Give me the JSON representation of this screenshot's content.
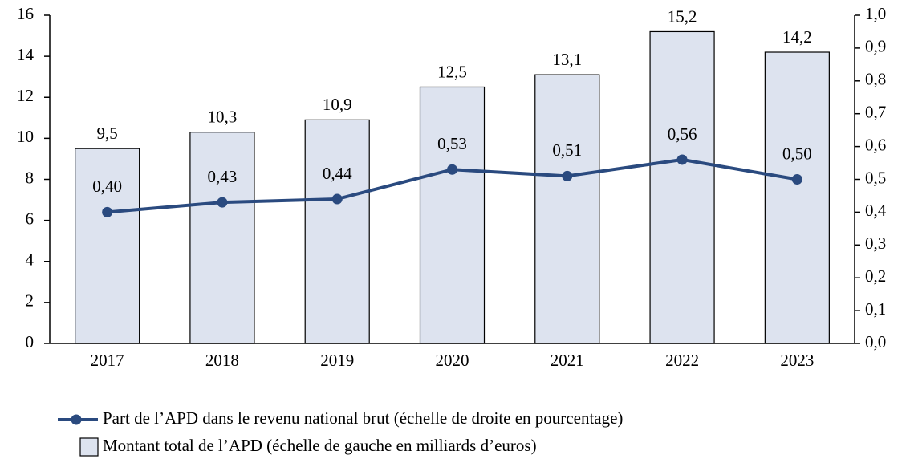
{
  "chart_data": {
    "type": "combo",
    "categories": [
      "2017",
      "2018",
      "2019",
      "2020",
      "2021",
      "2022",
      "2023"
    ],
    "series": [
      {
        "name": "Montant total de l’APD (échelle de gauche en milliards d’euros)",
        "type": "bar",
        "axis": "y",
        "color": "#dde3ef",
        "values": [
          9.5,
          10.3,
          10.9,
          12.5,
          13.1,
          15.2,
          14.2
        ],
        "value_labels": [
          "9,5",
          "10,3",
          "10,9",
          "12,5",
          "13,1",
          "15,2",
          "14,2"
        ]
      },
      {
        "name": "Part de l’APD dans le revenu national brut (échelle de droite en pourcentage)",
        "type": "line",
        "axis": "y2",
        "color": "#2a4a7f",
        "values": [
          0.4,
          0.43,
          0.44,
          0.53,
          0.51,
          0.56,
          0.5
        ],
        "value_labels": [
          "0,40",
          "0,43",
          "0,44",
          "0,53",
          "0,51",
          "0,56",
          "0,50"
        ]
      }
    ],
    "ylim": [
      0,
      16
    ],
    "yticks": [
      0,
      2,
      4,
      6,
      8,
      10,
      12,
      14,
      16
    ],
    "y2lim": [
      0,
      1.0
    ],
    "y2ticks": [
      {
        "value": 0,
        "label": "0,0"
      },
      {
        "value": 0.1,
        "label": "0,1"
      },
      {
        "value": 0.2,
        "label": "0,2"
      },
      {
        "value": 0.3,
        "label": "0,3"
      },
      {
        "value": 0.4,
        "label": "0,4"
      },
      {
        "value": 0.5,
        "label": "0,5"
      },
      {
        "value": 0.6,
        "label": "0,6"
      },
      {
        "value": 0.7,
        "label": "0,7"
      },
      {
        "value": 0.8,
        "label": "0,8"
      },
      {
        "value": 0.9,
        "label": "0,9"
      },
      {
        "value": 1.0,
        "label": "1,0"
      }
    ],
    "grid": false,
    "legend": "bottom"
  }
}
